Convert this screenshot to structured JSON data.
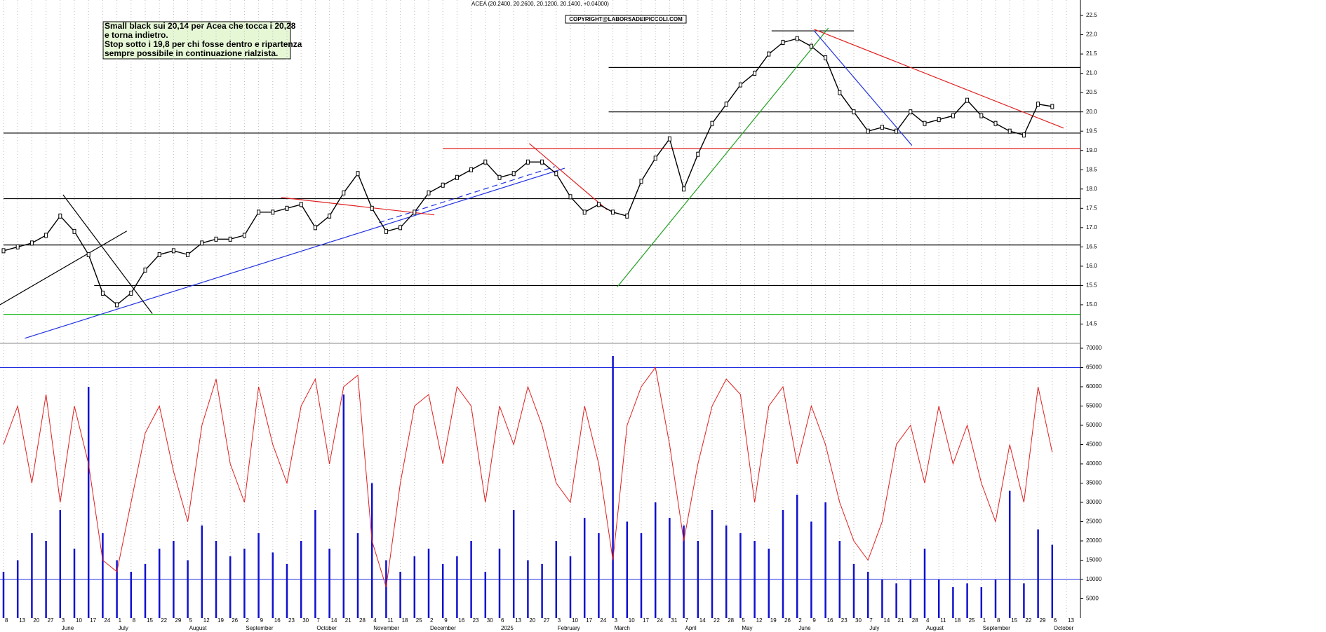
{
  "chart_data": {
    "type": "stock",
    "title": "ACEA (20.2400, 20.2600, 20.1200, 20.1400, +0.04000)",
    "copyright": "COPYRIGHT@LABORSADEIPICCOLI.COM",
    "annotation": [
      "Small black sui 20,14 per Acea che tocca i 20,28",
      "e torna indietro.",
      "Stop sotto i 19,8 per chi fosse dentro e ripartenza",
      "sempre possibile in continuazione rialzista."
    ],
    "categories": [
      "8",
      "13",
      "20",
      "27",
      "3",
      "10",
      "17",
      "24",
      "1",
      "8",
      "15",
      "22",
      "29",
      "5",
      "12",
      "19",
      "26",
      "2",
      "9",
      "16",
      "23",
      "30",
      "7",
      "14",
      "21",
      "28",
      "4",
      "11",
      "18",
      "25",
      "2",
      "9",
      "16",
      "23",
      "30",
      "6",
      "13",
      "20",
      "27",
      "3",
      "10",
      "17",
      "24",
      "3",
      "10",
      "17",
      "24",
      "31",
      "7",
      "14",
      "22",
      "28",
      "5",
      "12",
      "19",
      "26",
      "2",
      "9",
      "16",
      "23",
      "30",
      "7",
      "14",
      "21",
      "28",
      "4",
      "11",
      "18",
      "25",
      "1",
      "8",
      "15",
      "22",
      "29",
      "6",
      "13"
    ],
    "months": [
      {
        "index": 4,
        "label": "June"
      },
      {
        "index": 8,
        "label": "July"
      },
      {
        "index": 13,
        "label": "August"
      },
      {
        "index": 17,
        "label": "September"
      },
      {
        "index": 22,
        "label": "October"
      },
      {
        "index": 26,
        "label": "November"
      },
      {
        "index": 30,
        "label": "December"
      },
      {
        "index": 35,
        "label": "2025"
      },
      {
        "index": 39,
        "label": "February"
      },
      {
        "index": 43,
        "label": "March"
      },
      {
        "index": 48,
        "label": "April"
      },
      {
        "index": 52,
        "label": "May"
      },
      {
        "index": 56,
        "label": "June"
      },
      {
        "index": 61,
        "label": "July"
      },
      {
        "index": 65,
        "label": "August"
      },
      {
        "index": 69,
        "label": "September"
      },
      {
        "index": 74,
        "label": "October"
      }
    ],
    "price": {
      "name": "ACEA",
      "color": "#000000",
      "values": [
        16.4,
        16.5,
        16.6,
        16.8,
        17.3,
        16.9,
        16.3,
        15.3,
        15.0,
        15.3,
        15.9,
        16.3,
        16.4,
        16.3,
        16.6,
        16.7,
        16.7,
        16.8,
        17.4,
        17.4,
        17.5,
        17.6,
        17.0,
        17.3,
        17.9,
        18.4,
        17.5,
        16.9,
        17.0,
        17.4,
        17.9,
        18.1,
        18.3,
        18.5,
        18.7,
        18.3,
        18.4,
        18.7,
        18.7,
        18.4,
        17.8,
        17.4,
        17.6,
        17.4,
        17.3,
        18.2,
        18.8,
        19.3,
        18.0,
        18.9,
        19.7,
        20.2,
        20.7,
        21.0,
        21.5,
        21.8,
        21.9,
        21.7,
        21.4,
        20.5,
        20.0,
        19.5,
        19.6,
        19.5,
        20.0,
        19.7,
        19.8,
        19.9,
        20.3,
        19.9,
        19.7,
        19.5,
        19.4,
        20.2,
        20.14,
        null
      ]
    },
    "ylim": [
      14.0,
      22.9
    ],
    "yticks": [
      14.5,
      {
        "value": 15,
        "label": "15.0"
      },
      15.5,
      {
        "value": 16,
        "label": "16.0"
      },
      16.5,
      {
        "value": 17,
        "label": "17.0"
      },
      17.5,
      {
        "value": 18,
        "label": "18.0"
      },
      18.5,
      {
        "value": 19,
        "label": "19.0"
      },
      19.5,
      {
        "value": 20,
        "label": "20.0"
      },
      20.5,
      {
        "value": 21,
        "label": "21.0"
      },
      21.5,
      {
        "value": 22,
        "label": "22.0"
      },
      22.5
    ],
    "levels": [
      {
        "value": 19.05,
        "from": 31,
        "color": "#e02020"
      },
      {
        "value": 19.45,
        "from": 0,
        "color": "#000000"
      },
      {
        "value": 17.75,
        "from": 0,
        "color": "#000000"
      },
      {
        "value": 16.55,
        "from": 0,
        "color": "#000000"
      },
      {
        "value": 15.5,
        "from": 6.4,
        "color": "#000000"
      },
      {
        "value": 14.75,
        "from": 0,
        "color": "#00b000"
      },
      {
        "value": 21.15,
        "from": 42.7,
        "color": "#000000"
      },
      {
        "value": 20.0,
        "from": 42.7,
        "color": "#000000"
      },
      {
        "value": 22.1,
        "from": 54.2,
        "to": 60,
        "color": "#000000"
      }
    ],
    "trendlines": [
      {
        "color": "#2030e0",
        "points": [
          [
            1.5,
            14.13
          ],
          [
            39.6,
            18.54
          ]
        ]
      },
      {
        "color": "#20a020",
        "points": [
          [
            43.3,
            15.46
          ],
          [
            58.2,
            22.17
          ]
        ]
      },
      {
        "color": "#e02020",
        "points": [
          [
            57.2,
            22.14
          ],
          [
            74.8,
            19.58
          ]
        ]
      },
      {
        "color": "#2030e0",
        "points": [
          [
            57.2,
            22.1
          ],
          [
            64.1,
            19.13
          ]
        ]
      },
      {
        "color": "#e02020",
        "points": [
          [
            37.1,
            19.18
          ],
          [
            42.6,
            17.46
          ]
        ]
      },
      {
        "color": "#000000",
        "points": [
          [
            4.2,
            17.85
          ],
          [
            10.5,
            14.77
          ]
        ]
      },
      {
        "color": "#000000",
        "points": [
          [
            -0.25,
            15.0
          ],
          [
            8.7,
            16.91
          ]
        ]
      },
      {
        "color": "#e02020",
        "points": [
          [
            19.6,
            17.78
          ],
          [
            30.4,
            17.33
          ]
        ]
      },
      {
        "color": "#2030e0",
        "dashed": true,
        "points": [
          [
            26.5,
            17.13
          ],
          [
            38.9,
            18.58
          ]
        ]
      }
    ],
    "volume": {
      "name": "Volume",
      "color": "#1010d0",
      "values": [
        12000,
        15000,
        22000,
        20000,
        28000,
        18000,
        60000,
        22000,
        15000,
        12000,
        14000,
        18000,
        20000,
        15000,
        24000,
        20000,
        16000,
        18000,
        22000,
        17000,
        14000,
        20000,
        28000,
        18000,
        58000,
        22000,
        35000,
        15000,
        12000,
        16000,
        18000,
        14000,
        16000,
        20000,
        12000,
        18000,
        28000,
        15000,
        14000,
        20000,
        16000,
        26000,
        22000,
        68000,
        25000,
        22000,
        30000,
        26000,
        24000,
        20000,
        28000,
        24000,
        22000,
        20000,
        18000,
        28000,
        32000,
        25000,
        30000,
        20000,
        14000,
        12000,
        10000,
        9000,
        10000,
        18000,
        10000,
        8000,
        9000,
        8000,
        10000,
        33000,
        9000,
        23000,
        19000,
        null
      ]
    },
    "oscillator": {
      "name": "Oscillator",
      "color": "#e02020",
      "values": [
        45000,
        55000,
        35000,
        58000,
        30000,
        55000,
        40000,
        15000,
        12000,
        30000,
        48000,
        55000,
        38000,
        25000,
        50000,
        62000,
        40000,
        30000,
        60000,
        45000,
        35000,
        55000,
        62000,
        40000,
        60000,
        63000,
        20000,
        8000,
        35000,
        55000,
        58000,
        40000,
        60000,
        55000,
        30000,
        55000,
        45000,
        60000,
        50000,
        35000,
        30000,
        55000,
        40000,
        15000,
        50000,
        60000,
        65000,
        45000,
        20000,
        40000,
        55000,
        62000,
        58000,
        30000,
        55000,
        60000,
        40000,
        55000,
        45000,
        30000,
        20000,
        15000,
        25000,
        45000,
        50000,
        35000,
        55000,
        40000,
        50000,
        35000,
        25000,
        45000,
        30000,
        60000,
        43000,
        null
      ]
    },
    "volume_levels": [
      65000,
      10000
    ],
    "y2lim": [
      0,
      72000
    ],
    "y2ticks": [
      5000,
      10000,
      15000,
      20000,
      25000,
      30000,
      35000,
      40000,
      45000,
      50000,
      55000,
      60000,
      65000,
      70000
    ]
  }
}
